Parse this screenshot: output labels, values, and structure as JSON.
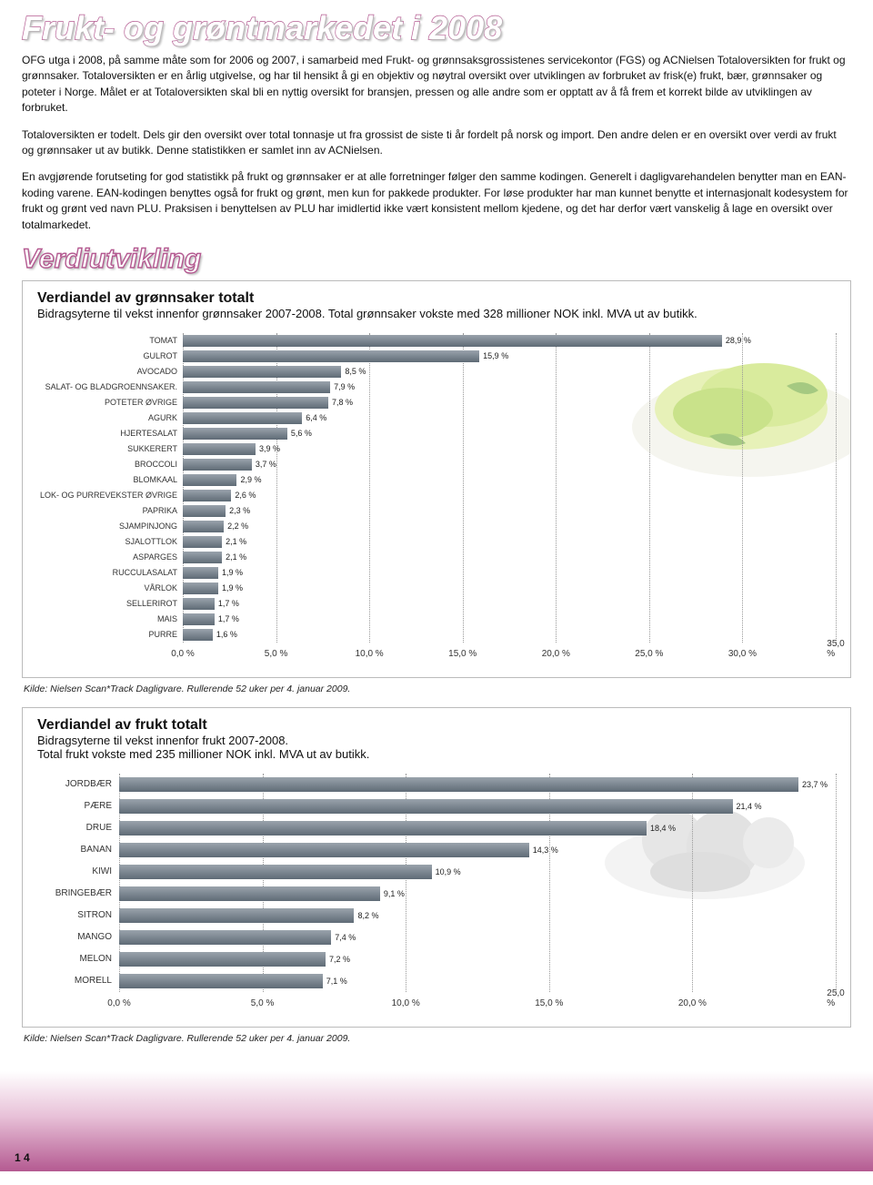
{
  "page_title": "Frukt- og grøntmarkedet i 2008",
  "section_title": "Verdiutvikling",
  "paragraphs": {
    "p1": "OFG utga i 2008, på samme måte som for 2006 og 2007, i samarbeid med Frukt- og grønnsaksgrossistenes servicekontor (FGS) og ACNielsen Totaloversikten for frukt og grønnsaker. Totaloversikten er en årlig utgivelse, og har til hensikt å gi en objektiv og nøytral oversikt over utviklingen av forbruket av frisk(e) frukt, bær, grønnsaker og poteter i Norge. Målet er at Totaloversikten skal bli en nyttig oversikt for bransjen, pressen og alle andre som er opptatt av å få frem et korrekt bilde av utviklingen av forbruket.",
    "p2": "Totaloversikten er todelt. Dels gir den oversikt over total tonnasje ut fra grossist de siste ti år fordelt på norsk og import. Den andre delen er en oversikt over verdi av frukt og grønnsaker ut av butikk. Denne statistikken er samlet inn av ACNielsen.",
    "p3": "En avgjørende forutseting for god statistikk på frukt og grønnsaker er at alle forretninger følger den samme kodingen. Generelt i dagligvarehandelen benytter man en EAN-koding varene. EAN-kodingen benyttes også for frukt og grønt, men kun for pakkede produkter. For løse produkter har man kunnet benytte et internasjonalt kodesystem for frukt og grønt ved navn PLU. Praksisen i benyttelsen av PLU har imidlertid ikke vært konsistent mellom kjedene, og det har derfor vært vanskelig å lage en oversikt over totalmarkedet."
  },
  "chart1": {
    "title": "Verdiandel av grønnsaker totalt",
    "subtitle": "Bidragsyterne til vekst innenfor grønnsaker 2007-2008. Total grønnsaker vokste med 328 millioner NOK inkl. MVA ut av butikk.",
    "xmax": 35.0,
    "xtick_step": 5.0,
    "label_width": 160,
    "bar_color_top": "#9aa3ac",
    "bar_color_bottom": "#5f6b76",
    "grid_color": "#999999",
    "background": "#ffffff",
    "items": [
      {
        "label": "TOMAT",
        "value": 28.9
      },
      {
        "label": "GULROT",
        "value": 15.9
      },
      {
        "label": "AVOCADO",
        "value": 8.5
      },
      {
        "label": "SALAT- OG BLADGROENNSAKER.",
        "value": 7.9
      },
      {
        "label": "POTETER ØVRIGE",
        "value": 7.8
      },
      {
        "label": "AGURK",
        "value": 6.4
      },
      {
        "label": "HJERTESALAT",
        "value": 5.6
      },
      {
        "label": "SUKKERERT",
        "value": 3.9
      },
      {
        "label": "BROCCOLI",
        "value": 3.7
      },
      {
        "label": "BLOMKAAL",
        "value": 2.9
      },
      {
        "label": "LOK- OG PURREVEKSTER ØVRIGE",
        "value": 2.6
      },
      {
        "label": "PAPRIKA",
        "value": 2.3
      },
      {
        "label": "SJAMPINJONG",
        "value": 2.2
      },
      {
        "label": "SJALOTTLOK",
        "value": 2.1
      },
      {
        "label": "ASPARGES",
        "value": 2.1
      },
      {
        "label": "RUCCULASALAT",
        "value": 1.9
      },
      {
        "label": "VÅRLOK",
        "value": 1.9
      },
      {
        "label": "SELLERIROT",
        "value": 1.7
      },
      {
        "label": "MAIS",
        "value": 1.7
      },
      {
        "label": "PURRE",
        "value": 1.6
      }
    ],
    "xticks": [
      "0,0 %",
      "5,0 %",
      "10,0 %",
      "15,0 %",
      "20,0 %",
      "25,0 %",
      "30,0 %",
      "35,0 %"
    ]
  },
  "chart2": {
    "title": "Verdiandel av frukt totalt",
    "subtitle": "Bidragsyterne til vekst innenfor frukt 2007-2008.\nTotal frukt vokste med 235 millioner NOK inkl. MVA ut av butikk.",
    "xmax": 25.0,
    "xtick_step": 5.0,
    "label_width": 90,
    "bar_color_top": "#9aa3ac",
    "bar_color_bottom": "#5f6b76",
    "grid_color": "#999999",
    "background": "#ffffff",
    "items": [
      {
        "label": "JORDBÆR",
        "value": 23.7
      },
      {
        "label": "PÆRE",
        "value": 21.4
      },
      {
        "label": "DRUE",
        "value": 18.4
      },
      {
        "label": "BANAN",
        "value": 14.3
      },
      {
        "label": "KIWI",
        "value": 10.9
      },
      {
        "label": "BRINGEBÆR",
        "value": 9.1
      },
      {
        "label": "SITRON",
        "value": 8.2
      },
      {
        "label": "MANGO",
        "value": 7.4
      },
      {
        "label": "MELON",
        "value": 7.2
      },
      {
        "label": "MORELL",
        "value": 7.1
      }
    ],
    "xticks": [
      "0,0 %",
      "5,0 %",
      "10,0 %",
      "15,0 %",
      "20,0 %",
      "25,0 %"
    ]
  },
  "source1": "Kilde: Nielsen Scan*Track Dagligvare. Rullerende 52 uker per 4. januar 2009.",
  "source2": "Kilde: Nielsen Scan*Track Dagligvare. Rullerende 52 uker per 4. januar 2009.",
  "page_number": "1 4"
}
